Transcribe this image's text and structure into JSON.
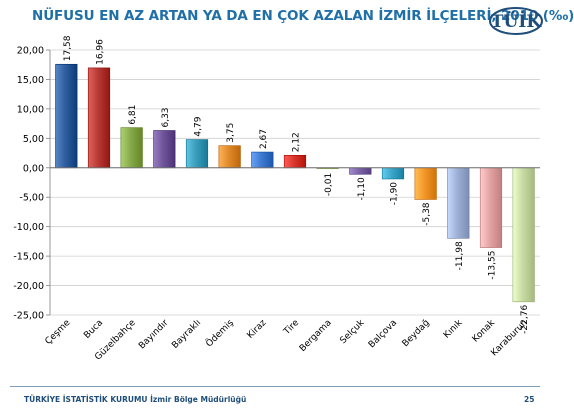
{
  "title": "NÜFUSU EN AZ ARTAN YA DA EN ÇOK AZALAN İZMİR İLÇELERİ, 2010 (‰)",
  "logo_text": "TÜİK",
  "footer_text": "TÜRKİYE İSTATİSTİK KURUMU İzmir Bölge Müdürlüğü",
  "page_number": "25",
  "chart_data": {
    "type": "bar",
    "title": "NÜFUSU EN AZ ARTAN YA DA EN ÇOK AZALAN İZMİR İLÇELERİ, 2010 (‰)",
    "xlabel": "",
    "ylabel": "",
    "ylim": [
      -25,
      20
    ],
    "yticks": [
      20,
      15,
      10,
      5,
      0,
      -5,
      -10,
      -15,
      -20,
      -25
    ],
    "ytick_labels": [
      "20,00",
      "15,00",
      "10,00",
      "5,00",
      "0,00",
      "-5,00",
      "-10,00",
      "-15,00",
      "-20,00",
      "-25,00"
    ],
    "grid": true,
    "legend": "none",
    "categories": [
      "Çeşme",
      "Buca",
      "Güzelbahçe",
      "Bayındır",
      "Bayraklı",
      "Ödemiş",
      "Kiraz",
      "Tire",
      "Bergama",
      "Selçuk",
      "Balçova",
      "Beydağ",
      "Kınık",
      "Konak",
      "Karaburun"
    ],
    "values": [
      17.58,
      16.96,
      6.81,
      6.33,
      4.79,
      3.75,
      2.67,
      2.12,
      -0.01,
      -1.1,
      -1.9,
      -5.38,
      -11.98,
      -13.55,
      -22.76
    ],
    "value_labels": [
      "17,58",
      "16,96",
      "6,81",
      "6,33",
      "4,79",
      "3,75",
      "2,67",
      "2,12",
      "-0,01",
      "-1,10",
      "-1,90",
      "-5,38",
      "-11,98",
      "-13,55",
      "-22,76"
    ],
    "colors": [
      "#2f5e9e",
      "#b83a35",
      "#86a94a",
      "#6f549a",
      "#3a9dbb",
      "#e08a2c",
      "#3f7ad1",
      "#d9362e",
      "#9aba5a",
      "#7a63a6",
      "#3aa5c8",
      "#f2962a",
      "#9eb0d6",
      "#e3a3a3",
      "#c7dba3"
    ]
  }
}
